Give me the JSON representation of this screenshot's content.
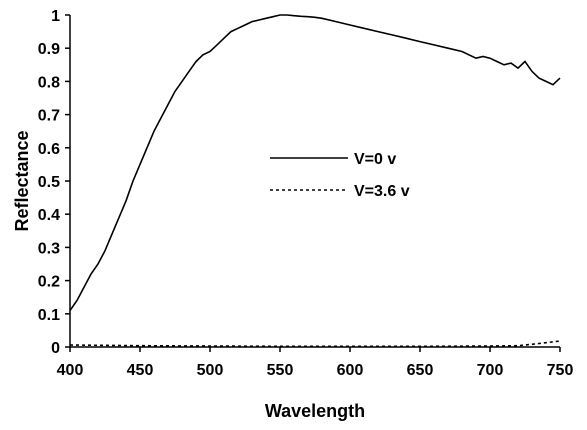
{
  "chart_data": {
    "type": "line",
    "title": "",
    "xlabel": "Wavelength",
    "ylabel": "Reflectance",
    "xlim": [
      400,
      750
    ],
    "ylim": [
      0,
      1
    ],
    "x_ticks": [
      400,
      450,
      500,
      550,
      600,
      650,
      700,
      750
    ],
    "y_ticks": [
      0,
      0.1,
      0.2,
      0.3,
      0.4,
      0.5,
      0.6,
      0.7,
      0.8,
      0.9,
      1
    ],
    "x_tick_labels": [
      "400",
      "450",
      "500",
      "550",
      "600",
      "650",
      "700",
      "750"
    ],
    "y_tick_labels": [
      "0",
      "0.1",
      "0.2",
      "0.3",
      "0.4",
      "0.5",
      "0.6",
      "0.7",
      "0.8",
      "0.9",
      "1"
    ],
    "grid": false,
    "legend_position": "center-right",
    "series": [
      {
        "name": "V=0 v",
        "style": "solid",
        "color": "#000000",
        "x": [
          400,
          405,
          410,
          415,
          420,
          425,
          430,
          435,
          440,
          445,
          450,
          455,
          460,
          465,
          470,
          475,
          480,
          485,
          490,
          495,
          500,
          505,
          510,
          515,
          520,
          525,
          530,
          535,
          540,
          545,
          550,
          555,
          560,
          565,
          570,
          575,
          580,
          590,
          600,
          610,
          620,
          630,
          640,
          650,
          660,
          670,
          680,
          690,
          695,
          700,
          705,
          710,
          715,
          720,
          725,
          730,
          735,
          740,
          745,
          750
        ],
        "y": [
          0.11,
          0.14,
          0.18,
          0.22,
          0.25,
          0.29,
          0.34,
          0.39,
          0.44,
          0.5,
          0.55,
          0.6,
          0.65,
          0.69,
          0.73,
          0.77,
          0.8,
          0.83,
          0.86,
          0.88,
          0.89,
          0.91,
          0.93,
          0.95,
          0.96,
          0.97,
          0.98,
          0.985,
          0.99,
          0.995,
          1.0,
          1.0,
          0.998,
          0.996,
          0.995,
          0.993,
          0.99,
          0.98,
          0.97,
          0.96,
          0.95,
          0.94,
          0.93,
          0.92,
          0.91,
          0.9,
          0.89,
          0.87,
          0.875,
          0.87,
          0.86,
          0.85,
          0.855,
          0.84,
          0.86,
          0.83,
          0.81,
          0.8,
          0.79,
          0.81
        ]
      },
      {
        "name": "V=3.6 v",
        "style": "dashed",
        "color": "#000000",
        "x": [
          400,
          450,
          500,
          550,
          600,
          650,
          700,
          720,
          730,
          740,
          750
        ],
        "y": [
          0.006,
          0.004,
          0.003,
          0.002,
          0.002,
          0.002,
          0.003,
          0.004,
          0.008,
          0.013,
          0.018
        ]
      }
    ]
  }
}
